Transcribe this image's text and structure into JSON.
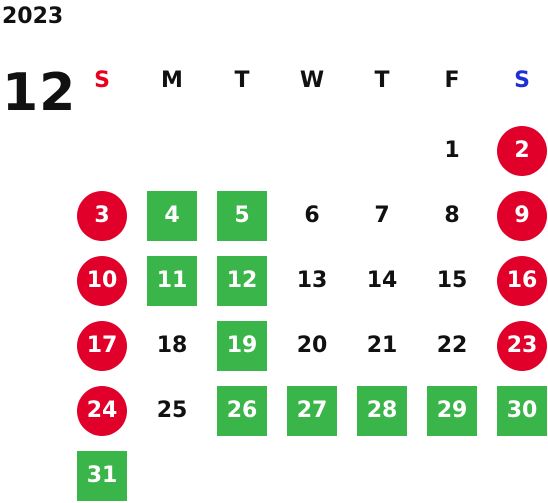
{
  "calendar": {
    "year": "2023",
    "month": "12",
    "weekdays": [
      {
        "label": "S",
        "color": "#e8001c"
      },
      {
        "label": "M",
        "color": "#111111"
      },
      {
        "label": "T",
        "color": "#111111"
      },
      {
        "label": "W",
        "color": "#111111"
      },
      {
        "label": "T",
        "color": "#111111"
      },
      {
        "label": "F",
        "color": "#111111"
      },
      {
        "label": "S",
        "color": "#1f2fd6"
      }
    ],
    "colors": {
      "holiday": "#e0002a",
      "event": "#3ab54a",
      "normal_text": "#111111"
    },
    "weeks": [
      [
        null,
        null,
        null,
        null,
        null,
        {
          "day": "1",
          "type": "normal"
        },
        {
          "day": "2",
          "type": "holiday"
        }
      ],
      [
        {
          "day": "3",
          "type": "holiday"
        },
        {
          "day": "4",
          "type": "event"
        },
        {
          "day": "5",
          "type": "event"
        },
        {
          "day": "6",
          "type": "normal"
        },
        {
          "day": "7",
          "type": "normal"
        },
        {
          "day": "8",
          "type": "normal"
        },
        {
          "day": "9",
          "type": "holiday"
        }
      ],
      [
        {
          "day": "10",
          "type": "holiday"
        },
        {
          "day": "11",
          "type": "event"
        },
        {
          "day": "12",
          "type": "event"
        },
        {
          "day": "13",
          "type": "normal"
        },
        {
          "day": "14",
          "type": "normal"
        },
        {
          "day": "15",
          "type": "normal"
        },
        {
          "day": "16",
          "type": "holiday"
        }
      ],
      [
        {
          "day": "17",
          "type": "holiday"
        },
        {
          "day": "18",
          "type": "normal"
        },
        {
          "day": "19",
          "type": "event"
        },
        {
          "day": "20",
          "type": "normal"
        },
        {
          "day": "21",
          "type": "normal"
        },
        {
          "day": "22",
          "type": "normal"
        },
        {
          "day": "23",
          "type": "holiday"
        }
      ],
      [
        {
          "day": "24",
          "type": "holiday"
        },
        {
          "day": "25",
          "type": "normal"
        },
        {
          "day": "26",
          "type": "event"
        },
        {
          "day": "27",
          "type": "event"
        },
        {
          "day": "28",
          "type": "event"
        },
        {
          "day": "29",
          "type": "event"
        },
        {
          "day": "30",
          "type": "event"
        }
      ],
      [
        {
          "day": "31",
          "type": "event"
        },
        null,
        null,
        null,
        null,
        null,
        null
      ]
    ]
  }
}
